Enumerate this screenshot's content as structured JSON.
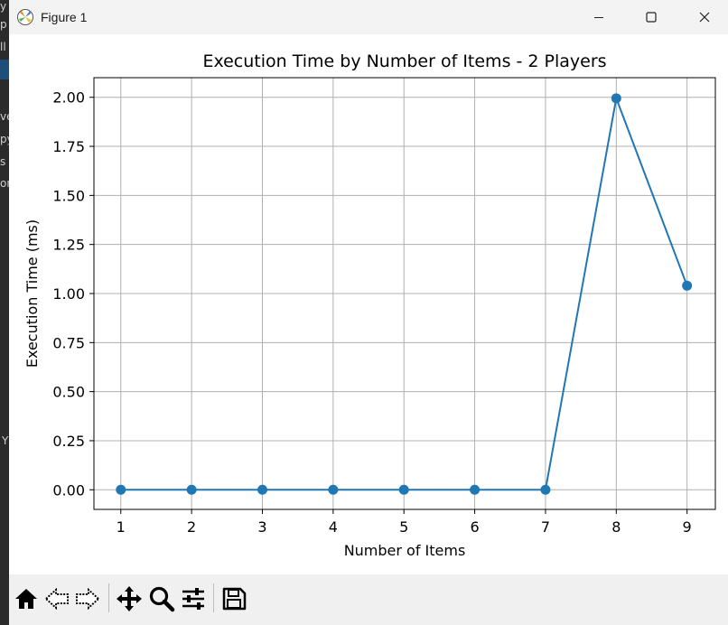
{
  "window": {
    "title": "Figure 1"
  },
  "chart_data": {
    "type": "line",
    "title": "Execution Time by Number of Items - 2 Players",
    "xlabel": "Number of Items",
    "ylabel": "Execution Time (ms)",
    "x": [
      1,
      2,
      3,
      4,
      5,
      6,
      7,
      8,
      9
    ],
    "xticks": [
      "1",
      "2",
      "3",
      "4",
      "5",
      "6",
      "7",
      "8",
      "9"
    ],
    "yticks": [
      "0.00",
      "0.25",
      "0.50",
      "0.75",
      "1.00",
      "1.25",
      "1.50",
      "1.75",
      "2.00"
    ],
    "xlim": [
      0.62,
      9.4
    ],
    "ylim": [
      -0.1,
      2.1
    ],
    "grid": true,
    "marker": "circle",
    "series": [
      {
        "values": [
          0,
          0,
          0,
          0,
          0,
          0,
          0,
          1.995,
          1.04
        ],
        "color": "#1f77b4"
      }
    ]
  },
  "toolbar": {
    "buttons": [
      "home-icon",
      "back-icon",
      "forward-icon",
      "pan-icon",
      "zoom-icon",
      "configure-subplots-icon",
      "save-icon"
    ]
  },
  "background": {
    "fragments": [
      "y",
      "p",
      "ll",
      "ve",
      "py",
      "s",
      "on",
      "Y"
    ]
  }
}
